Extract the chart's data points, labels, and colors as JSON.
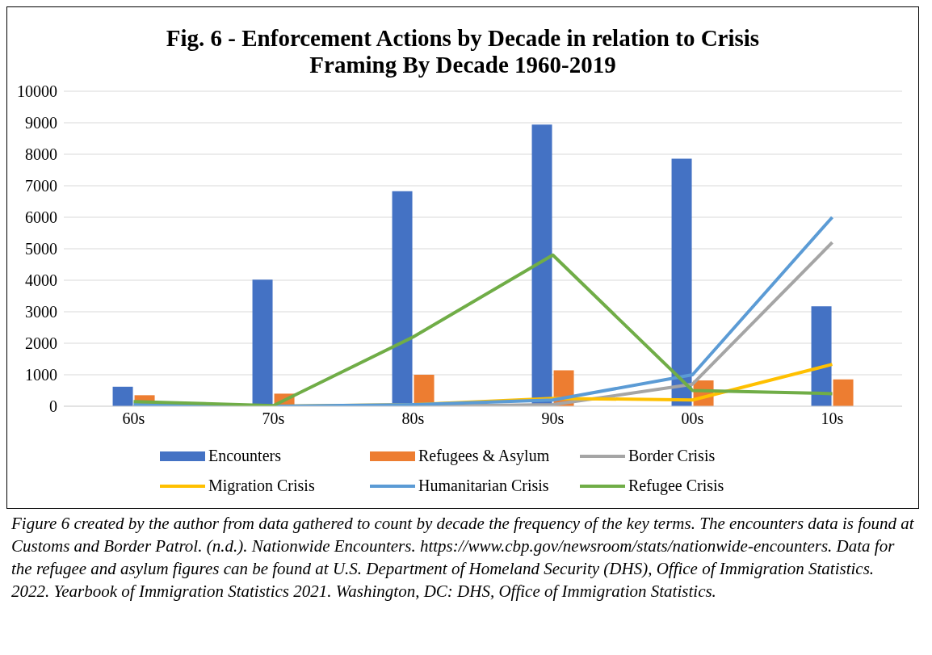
{
  "chart_data": {
    "type": "bar",
    "title": "Fig. 6 - Enforcement Actions by Decade in relation to Crisis Framing By Decade 1960-2019",
    "categories": [
      "60s",
      "70s",
      "80s",
      "90s",
      "00s",
      "10s"
    ],
    "series": [
      {
        "name": "Encounters",
        "color": "#4472c4",
        "values": [
          620,
          4020,
          6830,
          8940,
          7860,
          3170
        ]
      },
      {
        "name": "Refugees & Asylum",
        "color": "#ed7d31",
        "values": [
          350,
          400,
          1000,
          1140,
          820,
          850
        ]
      },
      {
        "name": "Border Crisis",
        "type": "line",
        "color": "#a5a5a5",
        "values": [
          0,
          0,
          0,
          50,
          700,
          5200
        ]
      },
      {
        "name": "Migration Crisis",
        "type": "line",
        "color": "#ffc000",
        "values": [
          0,
          0,
          50,
          250,
          200,
          1330
        ]
      },
      {
        "name": "Humanitarian Crisis",
        "type": "line",
        "color": "#5b9bd5",
        "values": [
          50,
          0,
          50,
          200,
          1000,
          6000
        ]
      },
      {
        "name": "Refugee Crisis",
        "type": "line",
        "color": "#70ad47",
        "values": [
          150,
          20,
          2200,
          4800,
          500,
          400
        ]
      }
    ],
    "ylim": [
      0,
      10000
    ],
    "yticks": [
      0,
      1000,
      2000,
      3000,
      4000,
      5000,
      6000,
      7000,
      8000,
      9000,
      10000
    ],
    "grid": "y",
    "legend": "bottom",
    "marker": "none",
    "annotations": [
      "Figure 6 created by the author from data gathered to count by decade the frequency of the key terms. The encounters data is found at Customs and Border Patrol. (n.d.). Nationwide Encounters. https://www.cbp.gov/newsroom/stats/nationwide-encounters. Data for the refugee and asylum figures can be found at U.S. Department of Homeland Security (DHS), Office of Immigration Statistics. 2022. Yearbook of Immigration Statistics 2021. Washington, DC: DHS, Office of Immigration Statistics."
    ]
  }
}
